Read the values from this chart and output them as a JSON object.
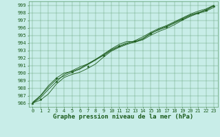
{
  "title": "Graphe pression niveau de la mer (hPa)",
  "bg_color": "#c8ede8",
  "grid_color": "#5a9a6a",
  "line_color": "#1a5a1a",
  "marker_color": "#1a5a1a",
  "xlim": [
    -0.5,
    23.5
  ],
  "ylim": [
    985.5,
    999.5
  ],
  "yticks": [
    986,
    987,
    988,
    989,
    990,
    991,
    992,
    993,
    994,
    995,
    996,
    997,
    998,
    999
  ],
  "xticks": [
    0,
    1,
    2,
    3,
    4,
    5,
    6,
    7,
    8,
    9,
    10,
    11,
    12,
    13,
    14,
    15,
    16,
    17,
    18,
    19,
    20,
    21,
    22,
    23
  ],
  "series": [
    [
      986.0,
      986.4,
      987.2,
      988.5,
      989.4,
      989.8,
      990.1,
      990.6,
      991.2,
      992.1,
      992.9,
      993.4,
      993.8,
      994.1,
      994.4,
      995.0,
      995.5,
      995.9,
      996.4,
      997.0,
      997.5,
      997.9,
      998.2,
      998.7
    ],
    [
      986.0,
      986.7,
      987.8,
      988.8,
      989.8,
      990.3,
      990.8,
      991.2,
      991.8,
      992.5,
      993.2,
      993.8,
      994.2,
      994.1,
      994.5,
      995.2,
      995.8,
      996.2,
      996.7,
      997.2,
      997.7,
      998.0,
      998.3,
      998.9
    ],
    [
      986.0,
      986.9,
      988.1,
      989.1,
      989.6,
      990.1,
      990.5,
      991.1,
      991.7,
      992.4,
      993.1,
      993.6,
      994.0,
      994.2,
      994.6,
      995.3,
      995.7,
      996.1,
      996.6,
      997.1,
      997.6,
      998.0,
      998.4,
      998.9
    ],
    [
      986.1,
      987.0,
      988.3,
      989.3,
      990.0,
      990.2,
      990.6,
      991.2,
      991.8,
      992.3,
      993.0,
      993.5,
      993.9,
      994.3,
      994.8,
      995.4,
      995.9,
      996.3,
      996.8,
      997.3,
      997.8,
      998.2,
      998.5,
      999.0
    ]
  ],
  "markers": {
    "0": [
      986.0
    ],
    "1": [
      986.5
    ],
    "3": [
      988.9,
      989.3
    ],
    "5": [
      990.1
    ],
    "7": [
      990.9
    ],
    "9": [
      992.3
    ],
    "11": [
      993.6
    ],
    "13": [
      994.2
    ],
    "15": [
      995.2
    ],
    "17": [
      996.1
    ],
    "19": [
      997.1
    ],
    "21": [
      998.0
    ],
    "22": [
      998.3
    ],
    "23": [
      998.9
    ]
  },
  "title_fontsize": 6.5,
  "tick_fontsize": 5.0
}
